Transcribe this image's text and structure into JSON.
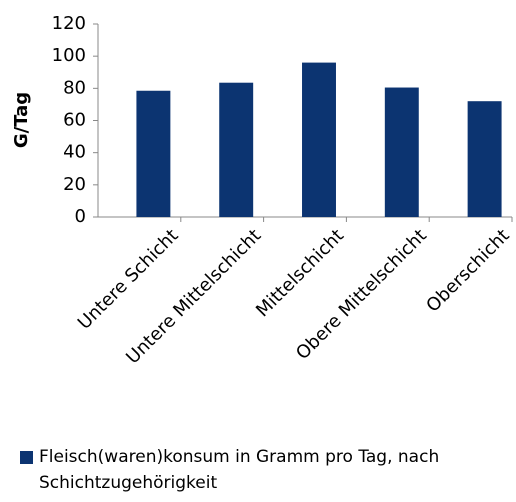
{
  "chart_data": {
    "type": "bar",
    "y_label": "G/Tag",
    "categories": [
      "Untere Schicht",
      "Untere Mittelschicht",
      "Mittelschicht",
      "Obere Mittelschicht",
      "Oberschicht"
    ],
    "series": [
      {
        "name": "Fleisch(waren)konsum in Gramm pro Tag, nach Schichtzugehörigkeit",
        "color": "#0c3471",
        "values": [
          78.5,
          83.5,
          96,
          80.5,
          72
        ]
      }
    ],
    "ylim": [
      0,
      120
    ],
    "yticks": [
      0,
      20,
      40,
      60,
      80,
      100,
      120
    ],
    "grid": false,
    "legend": "bottom"
  }
}
